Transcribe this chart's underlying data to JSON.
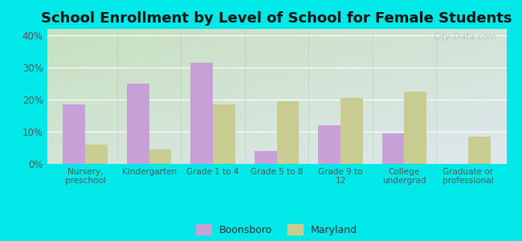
{
  "title": "School Enrollment by Level of School for Female Students",
  "categories": [
    "Nursery,\npreschool",
    "Kindergarten",
    "Grade 1 to 4",
    "Grade 5 to 8",
    "Grade 9 to\n12",
    "College\nundergrad",
    "Graduate or\nprofessional"
  ],
  "boonsboro": [
    18.5,
    25.0,
    31.5,
    4.0,
    12.0,
    9.5,
    0
  ],
  "maryland": [
    6.0,
    4.5,
    18.5,
    19.5,
    20.5,
    22.5,
    8.5
  ],
  "boonsboro_color": "#c8a0d8",
  "maryland_color": "#c8cc90",
  "background_outer": "#00e8e8",
  "bg_gradient_top_left": "#d4ecd4",
  "bg_gradient_bottom_right": "#f5f5e8",
  "ylim": [
    0,
    42
  ],
  "yticks": [
    0,
    10,
    20,
    30,
    40
  ],
  "ytick_labels": [
    "0%",
    "10%",
    "20%",
    "30%",
    "40%"
  ],
  "bar_width": 0.35,
  "title_fontsize": 13,
  "legend_labels": [
    "Boonsboro",
    "Maryland"
  ],
  "watermark": "City-Data.com"
}
